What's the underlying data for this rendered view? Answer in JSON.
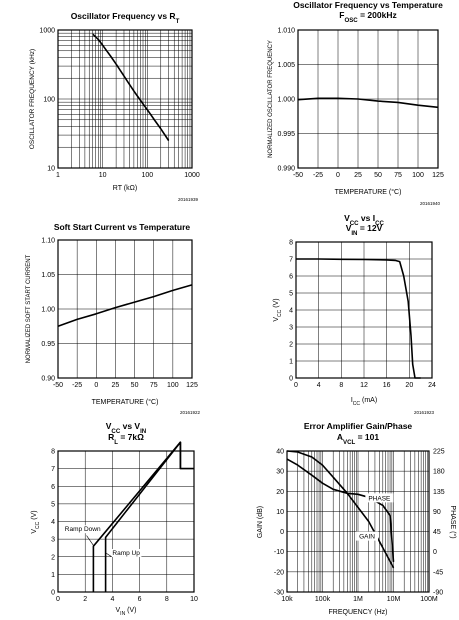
{
  "chart_data": [
    {
      "id": "c1",
      "type": "line",
      "title": "Oscillator Frequency vs R",
      "title_sub": "T",
      "xlabel": "RT (kΩ)",
      "ylabel": "OSCILLATOR FREQUENCY (kHz)",
      "x_scale": "log",
      "y_scale": "log",
      "xlim": [
        1,
        1000
      ],
      "ylim": [
        10,
        1000
      ],
      "xticks": [
        1,
        10,
        100,
        1000
      ],
      "xtick_labels": [
        "1",
        "10",
        "100",
        "1000"
      ],
      "yticks": [
        10,
        100,
        1000
      ],
      "ytick_labels": [
        "10",
        "100",
        "1000"
      ],
      "grid": true,
      "figure_id": "20161939",
      "series": [
        {
          "x": [
            6,
            8,
            10,
            15,
            20,
            30,
            50,
            80,
            100,
            150,
            200,
            300
          ],
          "y": [
            870,
            730,
            600,
            420,
            320,
            215,
            130,
            85,
            70,
            48,
            37,
            25
          ]
        }
      ]
    },
    {
      "id": "c2",
      "type": "line",
      "title": "Oscillator Frequency vs Temperature",
      "subtitle_main": "F",
      "subtitle_sub": "OSC",
      "subtitle_rest": " = 200kHz",
      "xlabel": "TEMPERATURE (°C)",
      "ylabel": "NORMALIZED OSCILLATOR FREQUENCY",
      "xlim": [
        -50,
        125
      ],
      "ylim": [
        0.99,
        1.01
      ],
      "xticks": [
        -50,
        -25,
        0,
        25,
        50,
        75,
        100,
        125
      ],
      "xtick_labels": [
        "-50",
        "-25",
        "0",
        "25",
        "50",
        "75",
        "100",
        "125"
      ],
      "yticks": [
        0.99,
        0.995,
        1.0,
        1.005,
        1.01
      ],
      "ytick_labels": [
        "0.990",
        "0.995",
        "1.000",
        "1.005",
        "1.010"
      ],
      "grid": true,
      "figure_id": "20161940",
      "series": [
        {
          "x": [
            -50,
            -25,
            0,
            25,
            50,
            75,
            100,
            125
          ],
          "y": [
            0.9999,
            1.0001,
            1.0001,
            1.0,
            0.9997,
            0.9995,
            0.9991,
            0.9988
          ]
        }
      ]
    },
    {
      "id": "c3",
      "type": "line",
      "title": "Soft Start Current vs Temperature",
      "xlabel": "TEMPERATURE (°C)",
      "ylabel": "NORMALIZED SOFT START CURRENT",
      "xlim": [
        -50,
        125
      ],
      "ylim": [
        0.9,
        1.1
      ],
      "xticks": [
        -50,
        -25,
        0,
        25,
        50,
        75,
        100,
        125
      ],
      "xtick_labels": [
        "-50",
        "-25",
        "0",
        "25",
        "50",
        "75",
        "100",
        "125"
      ],
      "yticks": [
        0.9,
        0.95,
        1.0,
        1.05,
        1.1
      ],
      "ytick_labels": [
        "0.90",
        "0.95",
        "1.00",
        "1.05",
        "1.10"
      ],
      "grid": true,
      "figure_id": "20161922",
      "series": [
        {
          "x": [
            -50,
            -25,
            0,
            25,
            50,
            75,
            100,
            125
          ],
          "y": [
            0.975,
            0.985,
            0.993,
            1.002,
            1.01,
            1.018,
            1.027,
            1.035
          ]
        }
      ]
    },
    {
      "id": "c4",
      "type": "line",
      "title_main": "V",
      "title_sub": "CC",
      "title_mid": " vs I",
      "title_sub2": "CC",
      "subtitle_main": "V",
      "subtitle_sub": "IN",
      "subtitle_rest": " = 12V",
      "xlabel_main": "I",
      "xlabel_sub": "CC",
      "xlabel_rest": " (mA)",
      "ylabel_main": "V",
      "ylabel_sub": "CC",
      "ylabel_rest": " (V)",
      "xlim": [
        0,
        24
      ],
      "ylim": [
        0,
        8
      ],
      "xticks": [
        0,
        4,
        8,
        12,
        16,
        20,
        24
      ],
      "xtick_labels": [
        "0",
        "4",
        "8",
        "12",
        "16",
        "20",
        "24"
      ],
      "yticks": [
        0,
        1,
        2,
        3,
        4,
        5,
        6,
        7,
        8
      ],
      "ytick_labels": [
        "0",
        "1",
        "2",
        "3",
        "4",
        "5",
        "6",
        "7",
        "8"
      ],
      "grid": true,
      "figure_id": "20161923",
      "series": [
        {
          "x": [
            0,
            4,
            8,
            12,
            16,
            17.5,
            18.3,
            19,
            19.8,
            20.3,
            20.6,
            21,
            22
          ],
          "y": [
            7.0,
            7.0,
            6.98,
            6.97,
            6.95,
            6.92,
            6.85,
            6.0,
            4.5,
            2.5,
            0.8,
            0.0,
            0.0
          ]
        }
      ]
    },
    {
      "id": "c5",
      "type": "line",
      "title_main": "V",
      "title_sub": "CC",
      "title_mid": " vs V",
      "title_sub2": "IN",
      "subtitle_main": "R",
      "subtitle_sub": "L",
      "subtitle_rest": " = 7kΩ",
      "xlabel_main": "V",
      "xlabel_sub": "IN",
      "xlabel_rest": " (V)",
      "ylabel_main": "V",
      "ylabel_sub": "CC",
      "ylabel_rest": " (V)",
      "xlim": [
        0,
        10
      ],
      "ylim": [
        0,
        8
      ],
      "xticks": [
        0,
        2,
        4,
        6,
        8,
        10
      ],
      "xtick_labels": [
        "0",
        "2",
        "4",
        "6",
        "8",
        "10"
      ],
      "yticks": [
        0,
        1,
        2,
        3,
        4,
        5,
        6,
        7,
        8
      ],
      "ytick_labels": [
        "0",
        "1",
        "2",
        "3",
        "4",
        "5",
        "6",
        "7",
        "8"
      ],
      "grid": true,
      "annotations": [
        "Ramp Down",
        "Ramp Up"
      ],
      "series": [
        {
          "x": [
            3.5,
            3.5,
            9.0,
            9.0,
            10.0
          ],
          "y": [
            0,
            3.1,
            8.5,
            7.0,
            7.0
          ]
        },
        {
          "x": [
            9.0,
            9.0,
            2.6,
            2.6
          ],
          "y": [
            7.0,
            8.5,
            2.6,
            0
          ]
        }
      ]
    },
    {
      "id": "c6",
      "type": "line",
      "title": "Error Amplifier Gain/Phase",
      "subtitle_main": "A",
      "subtitle_sub": "VCL",
      "subtitle_rest": " = 101",
      "xlabel": "FREQUENCY (Hz)",
      "ylabel_left": "GAIN (dB)",
      "ylabel_right": "PHASE (°)",
      "x_scale": "log",
      "xlim": [
        10000,
        100000000
      ],
      "ylim": [
        -30,
        40
      ],
      "ylim_right": [
        -90,
        225
      ],
      "xticks": [
        10000,
        100000,
        1000000,
        10000000,
        100000000
      ],
      "xtick_labels": [
        "10k",
        "100k",
        "1M",
        "10M",
        "100M"
      ],
      "yticks": [
        -30,
        -20,
        -10,
        0,
        10,
        20,
        30,
        40
      ],
      "ytick_labels": [
        "-30",
        "-20",
        "-10",
        "0",
        "10",
        "20",
        "30",
        "40"
      ],
      "yticks_right": [
        -90,
        -45,
        0,
        45,
        90,
        135,
        180,
        225
      ],
      "ytick_labels_right": [
        "-90",
        "-45",
        "0",
        "45",
        "90",
        "135",
        "180",
        "225"
      ],
      "grid": true,
      "series": [
        {
          "name": "GAIN",
          "x": [
            10000,
            20000,
            50000,
            100000,
            200000,
            500000,
            1000000,
            2000000,
            5000000,
            10000000
          ],
          "y": [
            40,
            39.5,
            37,
            33,
            27,
            19,
            12,
            5,
            -8,
            -18
          ]
        },
        {
          "name": "PHASE",
          "x": [
            10000,
            20000,
            50000,
            100000,
            200000,
            500000,
            1000000,
            2000000,
            5000000,
            8000000,
            10000000
          ],
          "y": [
            36,
            33,
            28,
            24,
            21,
            19,
            18.5,
            17,
            13,
            8,
            -15
          ]
        }
      ]
    }
  ]
}
